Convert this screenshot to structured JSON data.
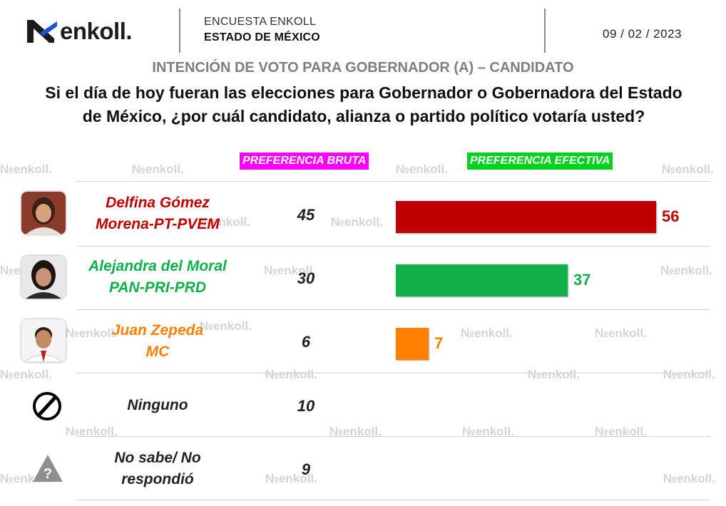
{
  "header": {
    "brand": "enkoll.",
    "survey_line1": "ENCUESTA ENKOLL",
    "survey_line2": "ESTADO DE MÉXICO",
    "date": "09 / 02 / 2023"
  },
  "subtitle": "INTENCIÓN DE VOTO PARA GOBERNADOR (A) – CANDIDATO",
  "question_line1": "Si el día de hoy fueran las elecciones para Gobernador o Gobernadora del Estado",
  "question_line2": "de México, ¿por cuál candidato, alianza o partido político votaría usted?",
  "watermark_text": "enkoll.",
  "colors": {
    "morena": "#c00000",
    "pan_pri_prd": "#12b04a",
    "mc": "#ff8000",
    "bruta_header": "#ff00ff",
    "efectiva_header": "#00d31e"
  },
  "icons": {
    "none_option": "prohibited-circle-icon",
    "no_answer_option": "question-triangle-icon"
  },
  "chart_data": {
    "type": "bar",
    "orientation": "horizontal",
    "columns": [
      "PREFERENCIA BRUTA",
      "PREFERENCIA EFECTIVA"
    ],
    "categories": [
      {
        "name_line1": "Delfina Gómez",
        "name_line2": "Morena-PT-PVEM",
        "bruta": "45",
        "efectiva": 56,
        "efectiva_label": "56",
        "color": "#c00000"
      },
      {
        "name_line1": "Alejandra del Moral",
        "name_line2": "PAN-PRI-PRD",
        "bruta": "30",
        "efectiva": 37,
        "efectiva_label": "37",
        "color": "#12b04a"
      },
      {
        "name_line1": "Juan Zepeda",
        "name_line2": "MC",
        "bruta": "6",
        "efectiva": 7,
        "efectiva_label": "7",
        "color": "#ff8000"
      },
      {
        "name_line1": "Ninguno",
        "name_line2": "",
        "bruta": "10",
        "efectiva": null,
        "efectiva_label": "",
        "color": "#222222"
      },
      {
        "name_line1": "No sabe/ No",
        "name_line2": "respondió",
        "bruta": "9",
        "efectiva": null,
        "efectiva_label": "",
        "color": "#222222"
      }
    ],
    "xlim": [
      0,
      56
    ],
    "grid": false
  }
}
